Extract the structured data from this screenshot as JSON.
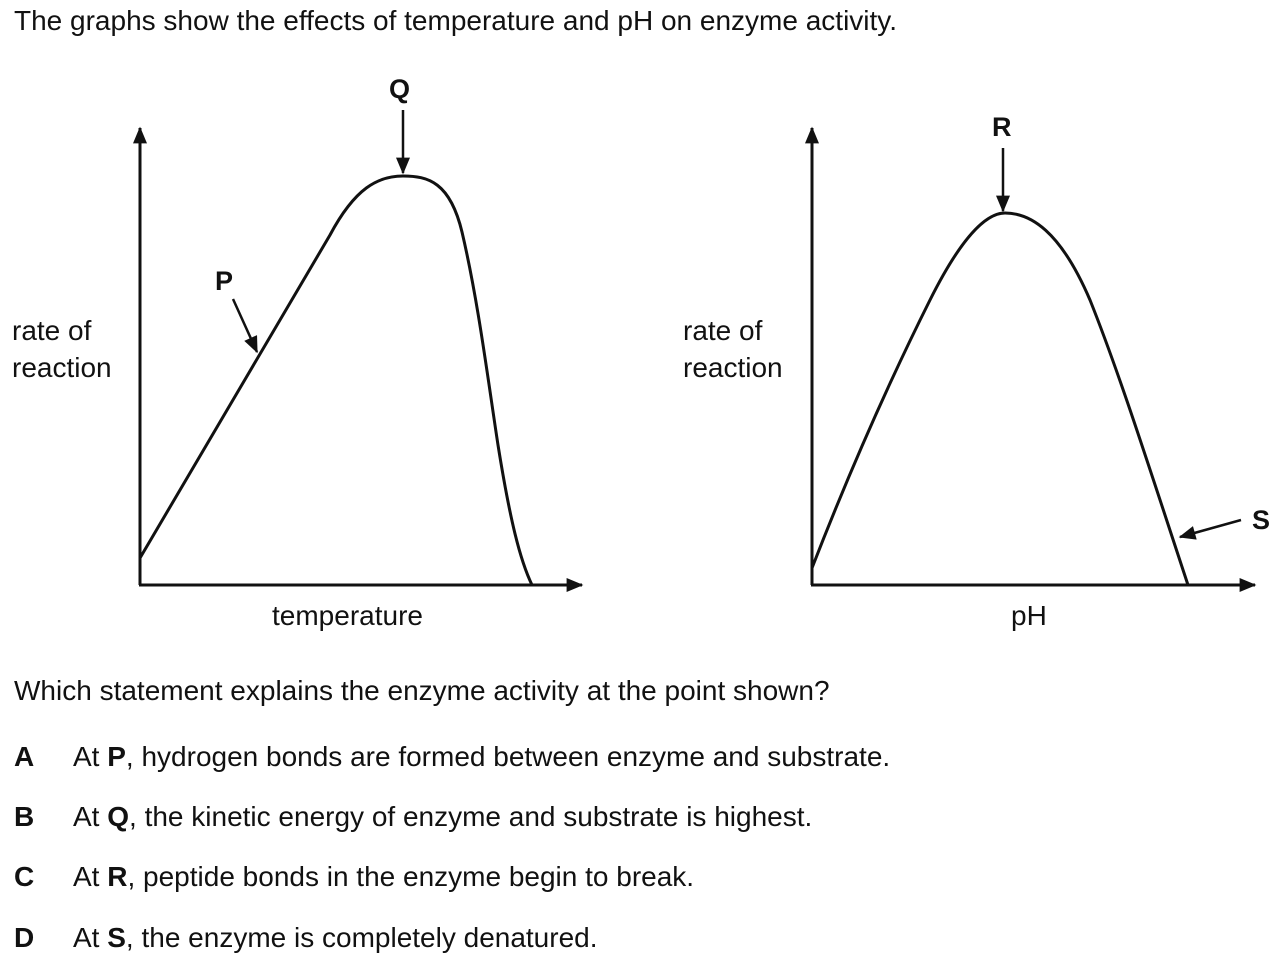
{
  "intro": "The graphs show the effects of temperature and pH on enzyme activity.",
  "graph_temperature": {
    "y_label_line1": "rate of",
    "y_label_line2": "reaction",
    "x_label": "temperature",
    "point_p": "P",
    "point_q": "Q"
  },
  "graph_ph": {
    "y_label_line1": "rate of",
    "y_label_line2": "reaction",
    "x_label": "pH",
    "point_r": "R",
    "point_s": "S"
  },
  "question": "Which statement explains the enzyme activity at the point shown?",
  "options": [
    {
      "letter": "A",
      "prefix": "At ",
      "point": "P",
      "rest": ", hydrogen bonds are formed between enzyme and substrate."
    },
    {
      "letter": "B",
      "prefix": "At ",
      "point": "Q",
      "rest": ", the kinetic energy of enzyme and substrate is highest."
    },
    {
      "letter": "C",
      "prefix": "At ",
      "point": "R",
      "rest": ", peptide bonds in the enzyme begin to break."
    },
    {
      "letter": "D",
      "prefix": "At ",
      "point": "S",
      "rest": ", the enzyme is completely denatured."
    }
  ]
}
